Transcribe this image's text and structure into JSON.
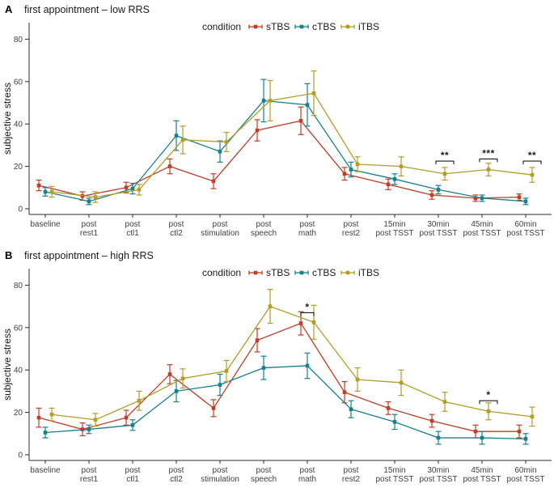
{
  "chart_data": {
    "type": "line",
    "description": "Two-panel pointrange/line chart of subjective stress across experimental time points for three TBS conditions",
    "categories": [
      [
        "baseline"
      ],
      [
        "post",
        "rest1"
      ],
      [
        "post",
        "ctl1"
      ],
      [
        "post",
        "ctl2"
      ],
      [
        "post",
        "stimulation"
      ],
      [
        "post",
        "speech"
      ],
      [
        "post",
        "math"
      ],
      [
        "post",
        "rest2"
      ],
      [
        "15min",
        "post TSST"
      ],
      [
        "30min",
        "post TSST"
      ],
      [
        "45min",
        "post TSST"
      ],
      [
        "60min",
        "post TSST"
      ]
    ],
    "y_axis": {
      "label": "subjective stress",
      "ticks": [
        0,
        20,
        40,
        60,
        80
      ],
      "range": [
        0,
        88
      ]
    },
    "grid": "off",
    "legend": {
      "title": "condition",
      "position": "top-center",
      "entries": [
        {
          "name": "sTBS",
          "color": "#c03d26"
        },
        {
          "name": "cTBS",
          "color": "#17808a"
        },
        {
          "name": "iTBS",
          "color": "#b29d26"
        }
      ]
    },
    "panels": [
      {
        "id": "A",
        "panel_label": "A",
        "title": "first appointment – low RRS",
        "series": [
          {
            "name": "sTBS",
            "color": "#c03d26",
            "values": [
              11,
              6,
              10,
              20,
              13,
              37,
              41.5,
              16.5,
              11.5,
              6.5,
              5,
              5.5
            ],
            "err": [
              2.5,
              2,
              2.5,
              3.5,
              3.5,
              5,
              6.5,
              3,
              2.5,
              2,
              1.5,
              1.5
            ]
          },
          {
            "name": "cTBS",
            "color": "#17808a",
            "values": [
              8,
              3.5,
              9.5,
              34.5,
              27,
              51,
              49,
              18.5,
              14,
              9,
              5,
              3.5
            ],
            "err": [
              2,
              1.5,
              2.5,
              7,
              5,
              10,
              10,
              3.5,
              2.5,
              2,
              1.5,
              1.5
            ]
          },
          {
            "name": "iTBS",
            "color": "#b29d26",
            "values": [
              8,
              5.5,
              9,
              32.5,
              31.5,
              51,
              54.5,
              21,
              20,
              16.5,
              18.5,
              16
            ],
            "err": [
              2.5,
              2.5,
              2.5,
              6.5,
              4.5,
              9.5,
              10.5,
              3.5,
              4.5,
              3,
              3,
              3.5
            ]
          }
        ],
        "annotations": [
          {
            "label": "**",
            "series": [
              "iTBS"
            ],
            "category": 9,
            "y": 22.5
          },
          {
            "label": "***",
            "series": [
              "iTBS"
            ],
            "category": 10,
            "y": 23.5
          },
          {
            "label": "**",
            "series": [
              "iTBS"
            ],
            "category": 11,
            "y": 22.5
          }
        ]
      },
      {
        "id": "B",
        "panel_label": "B",
        "title": "first appointment – high RRS",
        "series": [
          {
            "name": "sTBS",
            "color": "#c03d26",
            "values": [
              17.5,
              12,
              17.5,
              38,
              22,
              54,
              62,
              29.5,
              22,
              16,
              11,
              11
            ],
            "err": [
              4.5,
              3,
              3.5,
              4.5,
              4,
              5.5,
              5.5,
              5,
              3,
              3,
              3,
              3
            ]
          },
          {
            "name": "cTBS",
            "color": "#17808a",
            "values": [
              10.5,
              12,
              14,
              30,
              33,
              41,
              42,
              21.5,
              15.5,
              8,
              8,
              7.5
            ],
            "err": [
              2.5,
              2,
              2.5,
              5,
              5,
              5.5,
              6,
              4,
              3.5,
              3,
              3,
              2.5
            ]
          },
          {
            "name": "iTBS",
            "color": "#b29d26",
            "values": [
              19,
              16.5,
              25.5,
              36,
              39.5,
              70,
              62.5,
              35.5,
              34,
              25,
              20.5,
              18
            ],
            "err": [
              3,
              3,
              4.5,
              4.5,
              5,
              8,
              8,
              5.5,
              6,
              4.5,
              4,
              4.5
            ]
          }
        ],
        "annotations": [
          {
            "label": "*",
            "series": [
              "sTBS",
              "iTBS"
            ],
            "category": 6,
            "y": 67
          },
          {
            "label": "*",
            "series": [
              "iTBS"
            ],
            "category": 10,
            "y": 25.5
          }
        ]
      }
    ]
  },
  "style": {
    "axis_color": "#2b2b2b",
    "tick_label_color": "#404040",
    "text_color": "#1a1a1a"
  }
}
